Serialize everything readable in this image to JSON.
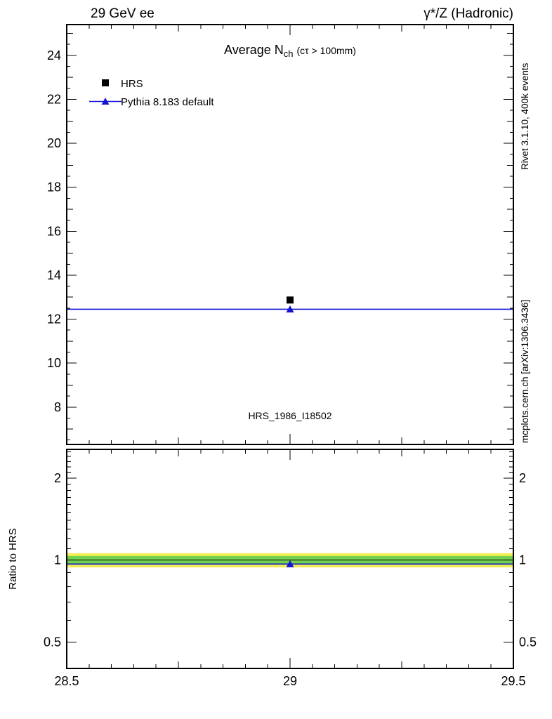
{
  "header": {
    "left": "29 GeV ee",
    "right": "γ*/Z (Hadronic)"
  },
  "credits": {
    "top": "Rivet 3.1.10,  400k events",
    "bottom": "mcplots.cern.ch [arXiv:1306.3436]"
  },
  "watermark": "HRS_1986_I18502",
  "chart_data": {
    "type": "line",
    "title": "Average N_ch (cτ > 100mm)",
    "title_parts": {
      "prefix": "Average N",
      "sub": "ch",
      "suffix": "(cτ > 100mm)"
    },
    "x": {
      "label": "",
      "min": 28.5,
      "max": 29.5,
      "ticks": [
        28.5,
        29,
        29.5
      ],
      "tick_labels": [
        "28.5",
        "29",
        "29.5"
      ]
    },
    "main_panel": {
      "ylim": [
        6.3,
        25.4
      ],
      "yticks": [
        8,
        10,
        12,
        14,
        16,
        18,
        20,
        22,
        24
      ],
      "ytick_labels": [
        "8",
        "10",
        "12",
        "14",
        "16",
        "18",
        "20",
        "22",
        "24"
      ],
      "series": [
        {
          "name": "HRS",
          "marker": "square",
          "color": "#000000",
          "points": [
            {
              "x": 29,
              "y": 12.87
            }
          ]
        },
        {
          "name": "Pythia 8.183 default",
          "marker": "triangle",
          "color": "#1414d2",
          "line_y": 12.45,
          "points": [
            {
              "x": 29,
              "y": 12.45
            }
          ]
        }
      ]
    },
    "ratio_panel": {
      "label": "Ratio to HRS",
      "scale": "log",
      "ylim": [
        0.4,
        2.55
      ],
      "yticks": [
        0.5,
        1,
        2
      ],
      "ytick_labels": [
        "0.5",
        "1",
        "2"
      ],
      "bands": [
        {
          "name": "outer",
          "color": "#f2ee55",
          "lo": 0.94,
          "hi": 1.06
        },
        {
          "name": "inner",
          "color": "#72d24f",
          "lo": 0.965,
          "hi": 1.035
        }
      ],
      "reference_line": {
        "y": 1,
        "color": "#000000"
      },
      "mc_line": {
        "y": 0.967,
        "color": "#1414d2",
        "marker_x": 29
      }
    },
    "legend": [
      {
        "label": "HRS",
        "marker": "square",
        "color": "#000000"
      },
      {
        "label": "Pythia 8.183 default",
        "marker": "triangle-line",
        "color": "#1414d2"
      }
    ]
  }
}
